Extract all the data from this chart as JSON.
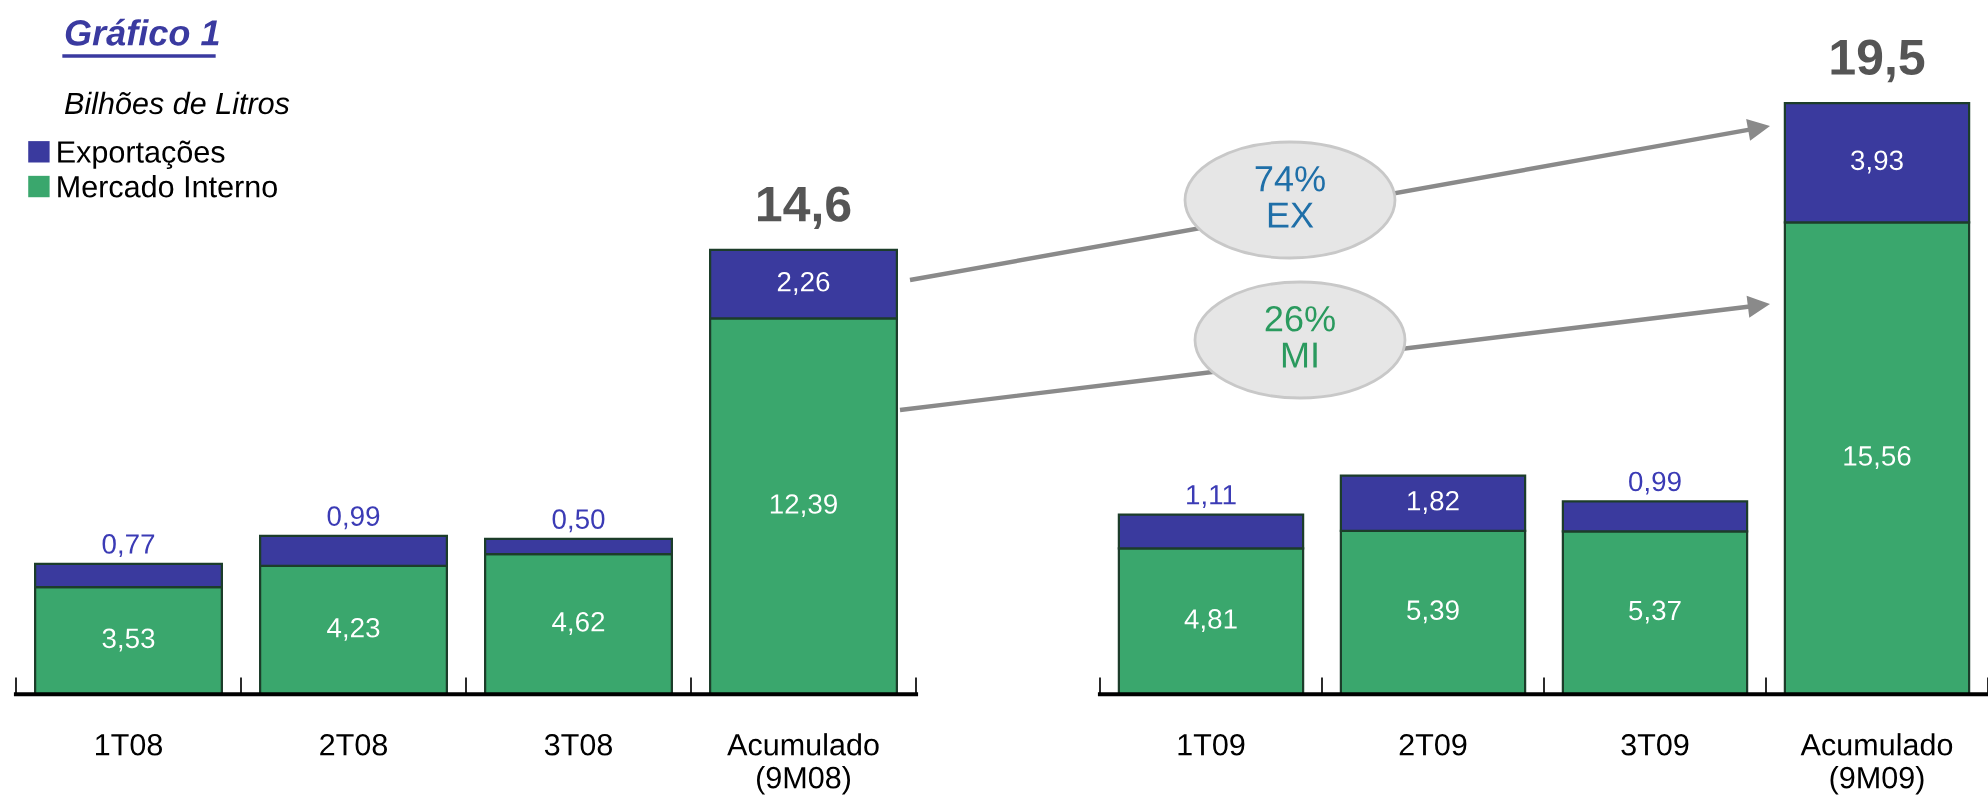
{
  "chart_data": [
    {
      "type": "bar",
      "title": "Gráfico 1",
      "subtitle": "Bilhões de Litros",
      "stacked": true,
      "legend": "top left",
      "tick_labels": "x",
      "categories": [
        "1T08",
        "2T08",
        "3T08",
        "Acumulado\n(9M08)"
      ],
      "series": [
        {
          "name": "Mercado Interno",
          "color": "#3aa76d",
          "values": [
            3.53,
            4.23,
            4.62,
            12.39
          ],
          "value_labels": [
            "3,53",
            "4,23",
            "4,62",
            "12,39"
          ]
        },
        {
          "name": "Exportações",
          "color": "#3a3a9e",
          "values": [
            0.77,
            0.99,
            0.5,
            2.26
          ],
          "value_labels": [
            "0,77",
            "0,99",
            "0,50",
            "2,26"
          ]
        }
      ],
      "totals": [
        null,
        null,
        null,
        "14,6"
      ]
    },
    {
      "type": "bar",
      "stacked": true,
      "tick_labels": "x",
      "categories": [
        "1T09",
        "2T09",
        "3T09",
        "Acumulado\n(9M09)"
      ],
      "series": [
        {
          "color": "#3aa76d",
          "values": [
            4.81,
            5.39,
            5.37,
            15.56
          ],
          "value_labels": [
            "4,81",
            "5,39",
            "5,37",
            "15,56"
          ]
        },
        {
          "color": "#3a3a9e",
          "values": [
            1.11,
            1.82,
            0.99,
            3.93
          ],
          "value_labels": [
            "1,11",
            "1,82",
            "0,99",
            "3,93"
          ]
        }
      ],
      "totals": [
        null,
        null,
        null,
        "19,5"
      ],
      "annotations": [
        "74%\nEX",
        "26%\nMI"
      ]
    }
  ]
}
